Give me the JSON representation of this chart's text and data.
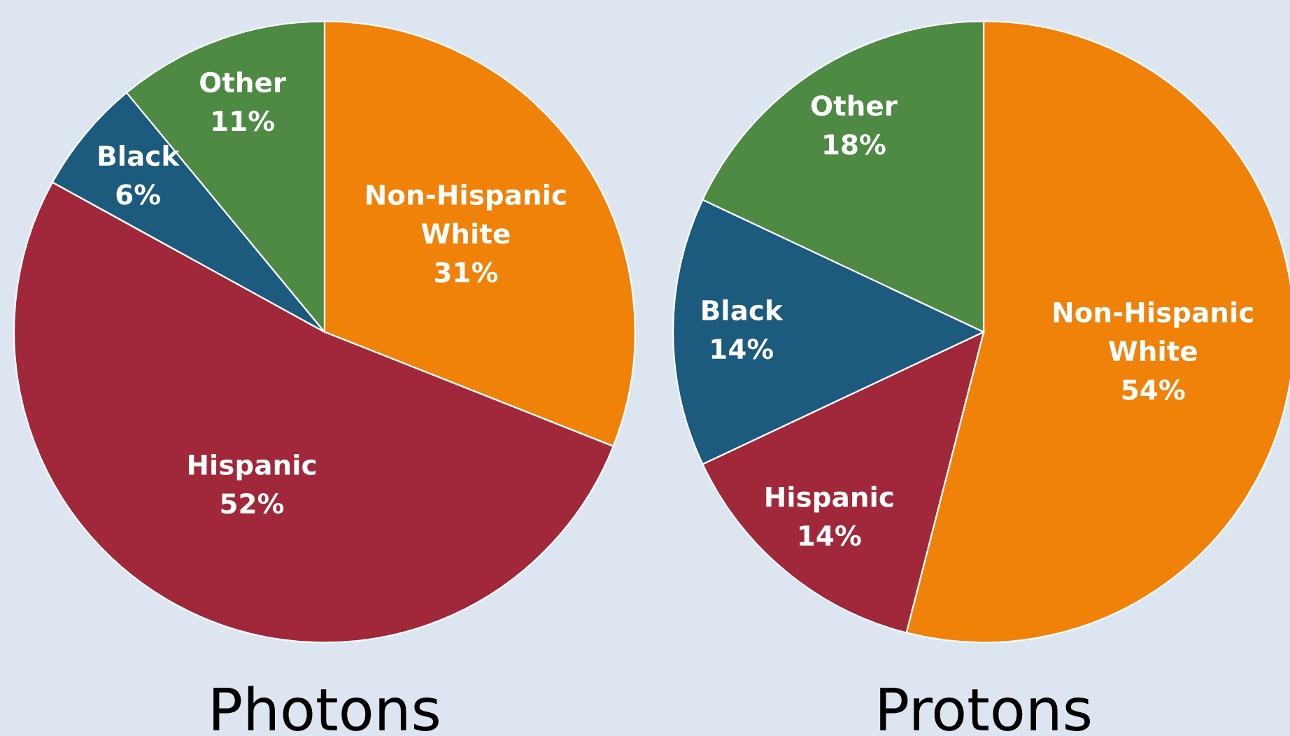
{
  "chart_data": [
    {
      "type": "pie",
      "title": "Photons",
      "categories": [
        "Non-Hispanic White",
        "Hispanic",
        "Black",
        "Other"
      ],
      "values": [
        31,
        52,
        6,
        11
      ],
      "value_labels": [
        "31%",
        "52%",
        "6%",
        "11%"
      ],
      "colors": [
        "#f0820a",
        "#a0283a",
        "#1c5a7e",
        "#4e8a44"
      ]
    },
    {
      "type": "pie",
      "title": "Protons",
      "categories": [
        "Non-Hispanic White",
        "Hispanic",
        "Black",
        "Other"
      ],
      "values": [
        54,
        14,
        14,
        18
      ],
      "value_labels": [
        "54%",
        "14%",
        "14%",
        "18%"
      ],
      "colors": [
        "#f0820a",
        "#a0283a",
        "#1c5a7e",
        "#4e8a44"
      ]
    }
  ]
}
